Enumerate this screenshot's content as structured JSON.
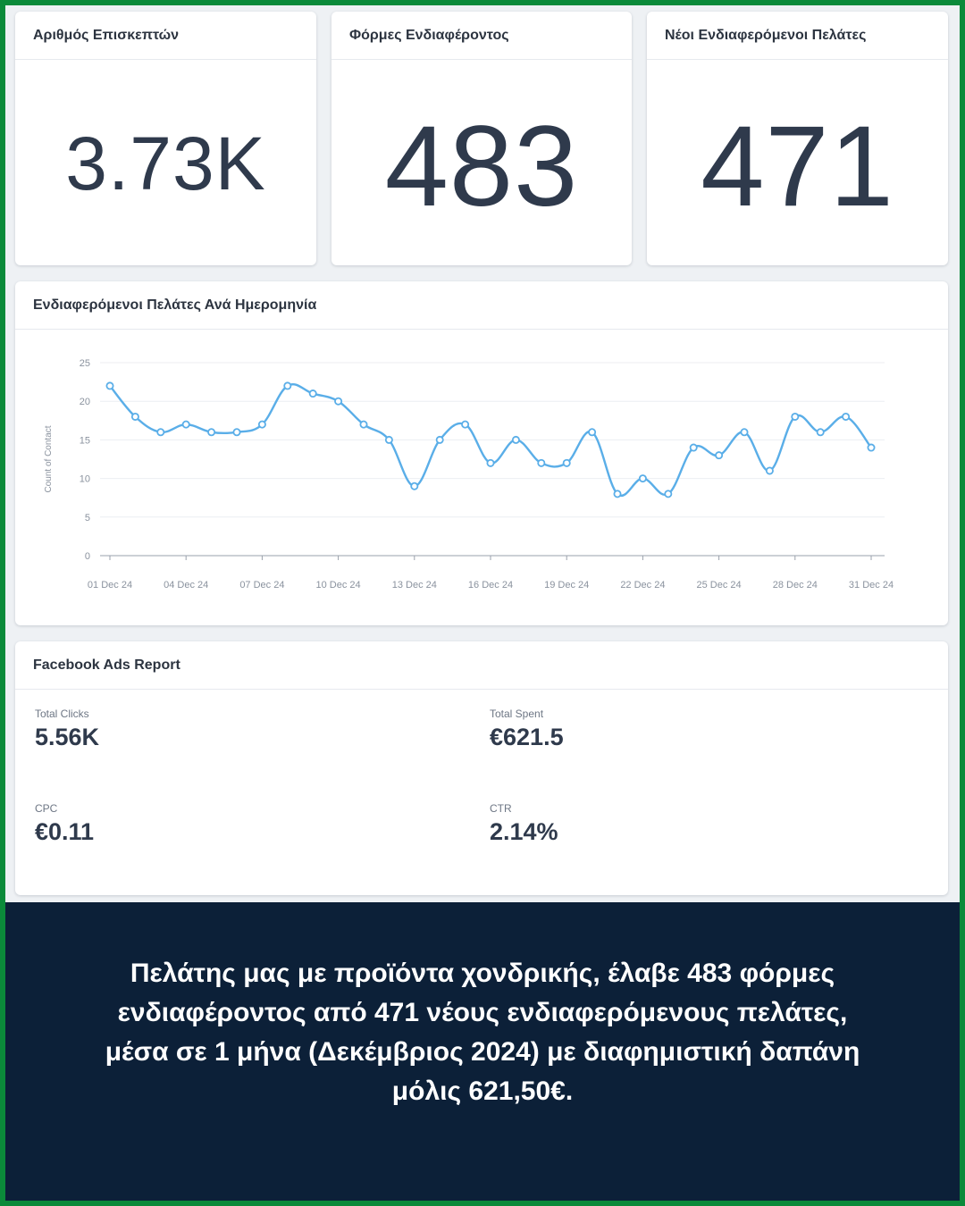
{
  "kpis": [
    {
      "title": "Αριθμός Επισκεπτών",
      "value": "3.73K"
    },
    {
      "title": "Φόρμες Ενδιαφέροντος",
      "value": "483"
    },
    {
      "title": "Νέοι Ενδιαφερόμενοι Πελάτες",
      "value": "471"
    }
  ],
  "chart_panel": {
    "title": "Ενδιαφερόμενοι Πελάτες Ανά Ημερομηνία"
  },
  "chart_data": {
    "type": "line",
    "title": "Ενδιαφερόμενοι Πελάτες Ανά Ημερομηνία",
    "ylabel": "Count of Contact",
    "xlabel": "",
    "ylim": [
      0,
      25
    ],
    "yticks": [
      "0",
      "5",
      "10",
      "15",
      "20",
      "25"
    ],
    "xtick_labels": [
      "01 Dec 24",
      "04 Dec 24",
      "07 Dec 24",
      "10 Dec 24",
      "13 Dec 24",
      "16 Dec 24",
      "19 Dec 24",
      "22 Dec 24",
      "25 Dec 24",
      "28 Dec 24",
      "31 Dec 24"
    ],
    "x": [
      "01 Dec 24",
      "02 Dec 24",
      "03 Dec 24",
      "04 Dec 24",
      "05 Dec 24",
      "06 Dec 24",
      "07 Dec 24",
      "08 Dec 24",
      "09 Dec 24",
      "10 Dec 24",
      "11 Dec 24",
      "12 Dec 24",
      "13 Dec 24",
      "14 Dec 24",
      "15 Dec 24",
      "16 Dec 24",
      "17 Dec 24",
      "18 Dec 24",
      "19 Dec 24",
      "20 Dec 24",
      "21 Dec 24",
      "22 Dec 24",
      "23 Dec 24",
      "24 Dec 24",
      "25 Dec 24",
      "26 Dec 24",
      "27 Dec 24",
      "28 Dec 24",
      "29 Dec 24",
      "30 Dec 24",
      "31 Dec 24"
    ],
    "values": [
      22,
      18,
      16,
      17,
      16,
      16,
      17,
      22,
      21,
      20,
      17,
      15,
      9,
      15,
      17,
      12,
      15,
      12,
      12,
      16,
      8,
      10,
      8,
      14,
      13,
      16,
      11,
      18,
      16,
      18,
      14
    ],
    "grid": true,
    "color": "#5aaee8"
  },
  "facebook": {
    "title": "Facebook Ads Report",
    "metrics": [
      {
        "label": "Total Clicks",
        "value": "5.56K"
      },
      {
        "label": "Total Spent",
        "value": "€621.5"
      },
      {
        "label": "CPC",
        "value": "€0.11"
      },
      {
        "label": "CTR",
        "value": "2.14%"
      }
    ]
  },
  "caption": "Πελάτης μας με προϊόντα χονδρικής, έλαβε 483 φόρμες ενδιαφέροντος από 471 νέους ενδιαφερόμενους πελάτες, μέσα σε 1 μήνα (Δεκέμβριος 2024) με διαφημιστική δαπάνη μόλις 621,50€.",
  "colors": {
    "frame": "#0b8a3a",
    "caption_bg": "#0c2038",
    "text_dark": "#2f3a4c",
    "line": "#5aaee8"
  }
}
